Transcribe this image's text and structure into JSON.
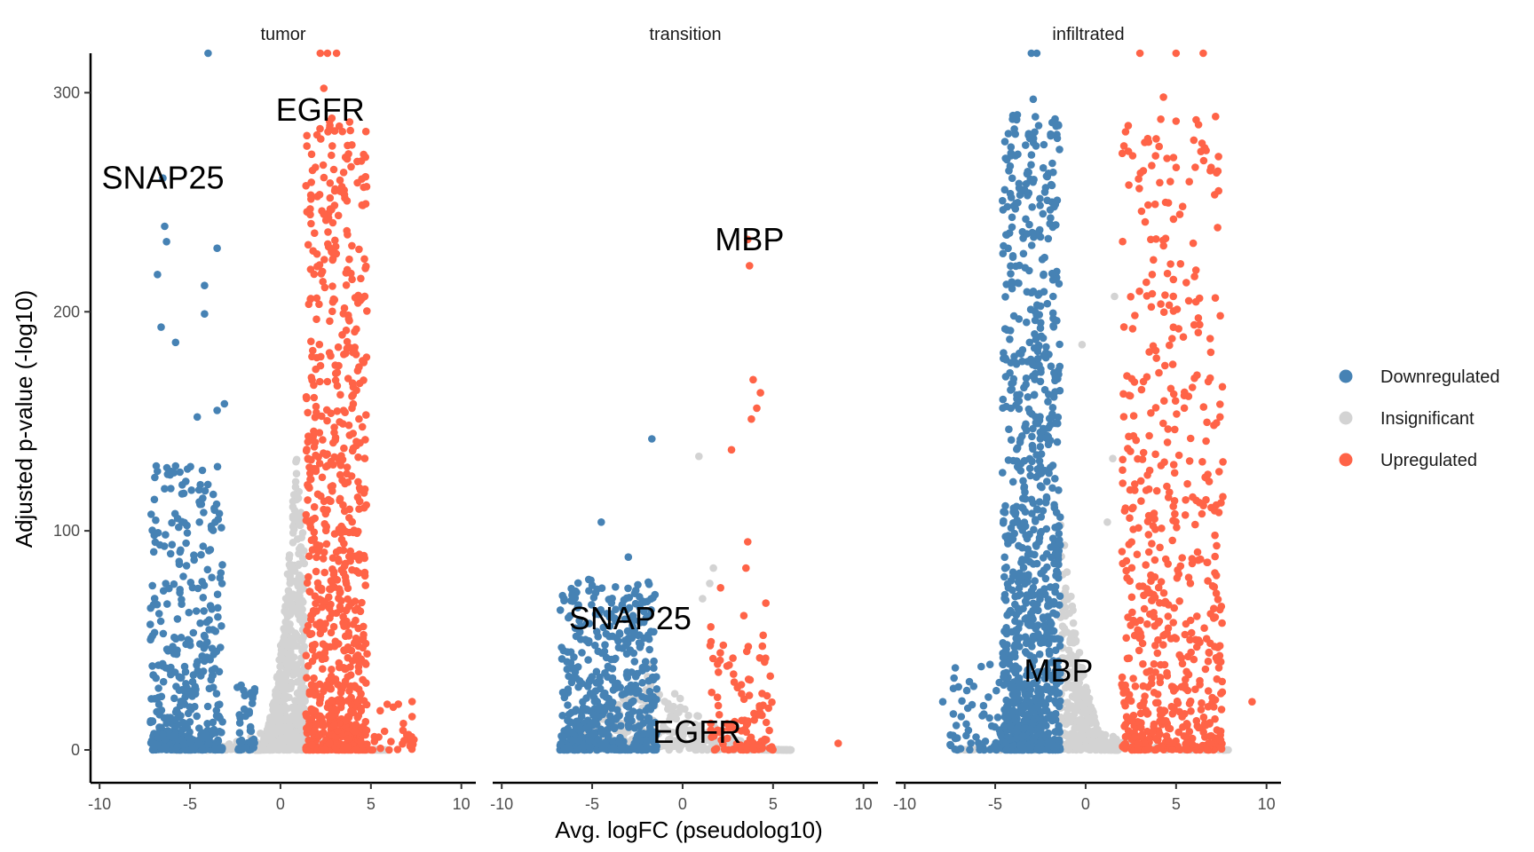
{
  "chart_data": {
    "type": "scatter",
    "xlabel": "Avg. logFC (pseudolog10)",
    "ylabel": "Adjusted p-value (-log10)",
    "ylim": [
      -15,
      318
    ],
    "xlim": [
      -10.5,
      10.8
    ],
    "x_scale": "pseudolog10",
    "x_ticks": [
      -10,
      -5,
      0,
      5,
      10
    ],
    "x_tick_labels": [
      "-10",
      "-5",
      "0",
      "5",
      "10"
    ],
    "y_ticks": [
      0,
      100,
      200,
      300
    ],
    "y_tick_labels": [
      "0",
      "100",
      "200",
      "300"
    ],
    "grid": false,
    "legend": {
      "placement": "right",
      "entries": [
        {
          "name": "Downregulated",
          "color": "#4682B4"
        },
        {
          "name": "Insignificant",
          "color": "#D3D3D3"
        },
        {
          "name": "Upregulated",
          "color": "#FF6347"
        }
      ]
    },
    "panels": [
      {
        "name": "tumor",
        "labels": [
          {
            "text": "SNAP25",
            "x": -6.5,
            "y": 261
          },
          {
            "text": "EGFR",
            "x": 2.2,
            "y": 292
          }
        ],
        "clusters": [
          {
            "group": "Insignificant",
            "x_min": -1.4,
            "x_max": 1.4,
            "y_max": 140,
            "n": 900,
            "peak": 0.9
          },
          {
            "group": "Insignificant",
            "x_min": -6,
            "x_max": 6,
            "y_max": 12,
            "n": 200,
            "peak": 0
          },
          {
            "group": "Downregulated",
            "x_min": -7.2,
            "x_max": -3.2,
            "y_max": 130,
            "n": 420
          },
          {
            "group": "Downregulated",
            "x_min": -2.4,
            "x_max": -1.4,
            "y_max": 30,
            "n": 50
          },
          {
            "group": "Upregulated",
            "x_min": 1.4,
            "x_max": 4.8,
            "y_max": 290,
            "n": 850
          },
          {
            "group": "Upregulated",
            "x_min": 4.8,
            "x_max": 7.5,
            "y_max": 25,
            "n": 30
          }
        ],
        "points": [
          {
            "group": "Downregulated",
            "x": -6.5,
            "y": 261
          },
          {
            "group": "Downregulated",
            "x": -6.4,
            "y": 239
          },
          {
            "group": "Downregulated",
            "x": -6.3,
            "y": 232
          },
          {
            "group": "Downregulated",
            "x": -4.2,
            "y": 212
          },
          {
            "group": "Downregulated",
            "x": -4.2,
            "y": 199
          },
          {
            "group": "Downregulated",
            "x": -3.5,
            "y": 229
          },
          {
            "group": "Downregulated",
            "x": -3.1,
            "y": 158
          },
          {
            "group": "Downregulated",
            "x": -4.6,
            "y": 152
          },
          {
            "group": "Downregulated",
            "x": -6.8,
            "y": 217
          },
          {
            "group": "Downregulated",
            "x": -6.6,
            "y": 193
          },
          {
            "group": "Downregulated",
            "x": -5.8,
            "y": 186
          },
          {
            "group": "Downregulated",
            "x": -3.5,
            "y": 155
          },
          {
            "group": "Downregulated",
            "x": -4.0,
            "y": 318
          },
          {
            "group": "Upregulated",
            "x": 2.4,
            "y": 302
          },
          {
            "group": "Upregulated",
            "x": 3.3,
            "y": 255
          },
          {
            "group": "Upregulated",
            "x": 3.6,
            "y": 181
          },
          {
            "group": "Upregulated",
            "x": 2.2,
            "y": 318
          },
          {
            "group": "Upregulated",
            "x": 2.6,
            "y": 318
          },
          {
            "group": "Upregulated",
            "x": 3.1,
            "y": 318
          }
        ]
      },
      {
        "name": "transition",
        "labels": [
          {
            "text": "MBP",
            "x": 3.7,
            "y": 233
          },
          {
            "text": "SNAP25",
            "x": -2.9,
            "y": 60
          },
          {
            "text": "EGFR",
            "x": 0.8,
            "y": 8
          }
        ],
        "clusters": [
          {
            "group": "Insignificant",
            "x_min": -6,
            "x_max": 6,
            "y_max": 40,
            "n": 380,
            "peak": -1.8
          },
          {
            "group": "Downregulated",
            "x_min": -6.8,
            "x_max": -1.4,
            "y_max": 78,
            "n": 520
          },
          {
            "group": "Upregulated",
            "x_min": 1.5,
            "x_max": 5.0,
            "y_max": 62,
            "n": 120
          }
        ],
        "points": [
          {
            "group": "Downregulated",
            "x": -1.7,
            "y": 142
          },
          {
            "group": "Downregulated",
            "x": -4.5,
            "y": 104
          },
          {
            "group": "Downregulated",
            "x": -3.0,
            "y": 88
          },
          {
            "group": "Upregulated",
            "x": 3.6,
            "y": 233
          },
          {
            "group": "Upregulated",
            "x": 3.7,
            "y": 221
          },
          {
            "group": "Upregulated",
            "x": 3.9,
            "y": 169
          },
          {
            "group": "Upregulated",
            "x": 4.3,
            "y": 163
          },
          {
            "group": "Upregulated",
            "x": 4.1,
            "y": 156
          },
          {
            "group": "Upregulated",
            "x": 3.8,
            "y": 151
          },
          {
            "group": "Upregulated",
            "x": 2.7,
            "y": 137
          },
          {
            "group": "Upregulated",
            "x": 3.6,
            "y": 95
          },
          {
            "group": "Upregulated",
            "x": 3.5,
            "y": 83
          },
          {
            "group": "Upregulated",
            "x": 4.6,
            "y": 67
          },
          {
            "group": "Upregulated",
            "x": 2.1,
            "y": 74
          },
          {
            "group": "Upregulated",
            "x": 8.6,
            "y": 3
          },
          {
            "group": "Insignificant",
            "x": 0.9,
            "y": 134
          },
          {
            "group": "Insignificant",
            "x": 1.7,
            "y": 83
          },
          {
            "group": "Insignificant",
            "x": 1.5,
            "y": 76
          },
          {
            "group": "Insignificant",
            "x": 1.1,
            "y": 69
          }
        ]
      },
      {
        "name": "infiltrated",
        "labels": [
          {
            "text": "MBP",
            "x": -1.5,
            "y": 36
          }
        ],
        "clusters": [
          {
            "group": "Insignificant",
            "x_min": -1.4,
            "x_max": 1.8,
            "y_max": 110,
            "n": 500,
            "peak": -1.4
          },
          {
            "group": "Insignificant",
            "x_min": -7,
            "x_max": 8,
            "y_max": 10,
            "n": 150,
            "peak": 0
          },
          {
            "group": "Downregulated",
            "x_min": -4.6,
            "x_max": -1.4,
            "y_max": 290,
            "n": 1000
          },
          {
            "group": "Downregulated",
            "x_min": -7.5,
            "x_max": -4.6,
            "y_max": 40,
            "n": 60
          },
          {
            "group": "Upregulated",
            "x_min": 2.0,
            "x_max": 7.6,
            "y_max": 290,
            "n": 620
          }
        ],
        "points": [
          {
            "group": "Downregulated",
            "x": -2.9,
            "y": 297
          },
          {
            "group": "Downregulated",
            "x": -1.5,
            "y": 285
          },
          {
            "group": "Downregulated",
            "x": -2.6,
            "y": 285
          },
          {
            "group": "Downregulated",
            "x": -3.2,
            "y": 264
          },
          {
            "group": "Downregulated",
            "x": -1.9,
            "y": 258
          },
          {
            "group": "Downregulated",
            "x": -1.8,
            "y": 207
          },
          {
            "group": "Downregulated",
            "x": -3.8,
            "y": 162
          },
          {
            "group": "Downregulated",
            "x": -4.0,
            "y": 132
          },
          {
            "group": "Downregulated",
            "x": -3.0,
            "y": 318
          },
          {
            "group": "Downregulated",
            "x": -2.7,
            "y": 318
          },
          {
            "group": "Downregulated",
            "x": -7.9,
            "y": 22
          },
          {
            "group": "Upregulated",
            "x": 4.3,
            "y": 298
          },
          {
            "group": "Upregulated",
            "x": 5.0,
            "y": 287
          },
          {
            "group": "Upregulated",
            "x": 4.5,
            "y": 270
          },
          {
            "group": "Upregulated",
            "x": 3.6,
            "y": 233
          },
          {
            "group": "Upregulated",
            "x": 6.1,
            "y": 219
          },
          {
            "group": "Upregulated",
            "x": 5.7,
            "y": 205
          },
          {
            "group": "Upregulated",
            "x": 6.0,
            "y": 194
          },
          {
            "group": "Upregulated",
            "x": 9.2,
            "y": 22
          },
          {
            "group": "Upregulated",
            "x": 3.0,
            "y": 318
          },
          {
            "group": "Upregulated",
            "x": 5.0,
            "y": 318
          },
          {
            "group": "Upregulated",
            "x": 6.5,
            "y": 318
          },
          {
            "group": "Insignificant",
            "x": 1.6,
            "y": 207
          },
          {
            "group": "Insignificant",
            "x": -0.2,
            "y": 185
          },
          {
            "group": "Insignificant",
            "x": 1.5,
            "y": 133
          },
          {
            "group": "Insignificant",
            "x": 1.2,
            "y": 104
          }
        ]
      }
    ]
  }
}
